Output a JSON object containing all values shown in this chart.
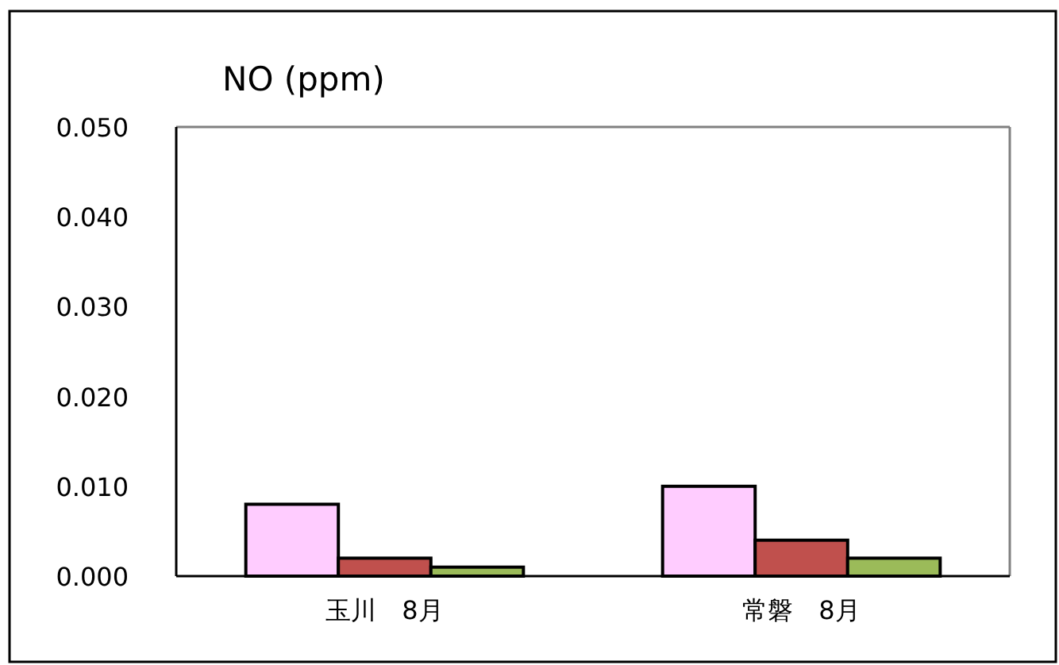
{
  "chart_data": {
    "type": "bar",
    "title": "NO (ppm)",
    "categories": [
      "玉川　8月",
      "常磐　8月"
    ],
    "series": [
      {
        "color": "#ffccff",
        "values": [
          0.008,
          0.01
        ]
      },
      {
        "color": "#c0504d",
        "values": [
          0.002,
          0.004
        ]
      },
      {
        "color": "#9bbb59",
        "values": [
          0.001,
          0.002
        ]
      }
    ],
    "ylim": [
      0,
      0.05
    ],
    "yticks": [
      {
        "value": 0,
        "label": "0.000"
      },
      {
        "value": 0.01,
        "label": "0.010"
      },
      {
        "value": 0.02,
        "label": "0.020"
      },
      {
        "value": 0.03,
        "label": "0.030"
      },
      {
        "value": 0.04,
        "label": "0.040"
      },
      {
        "value": 0.05,
        "label": "0.050"
      }
    ],
    "grid": false
  }
}
